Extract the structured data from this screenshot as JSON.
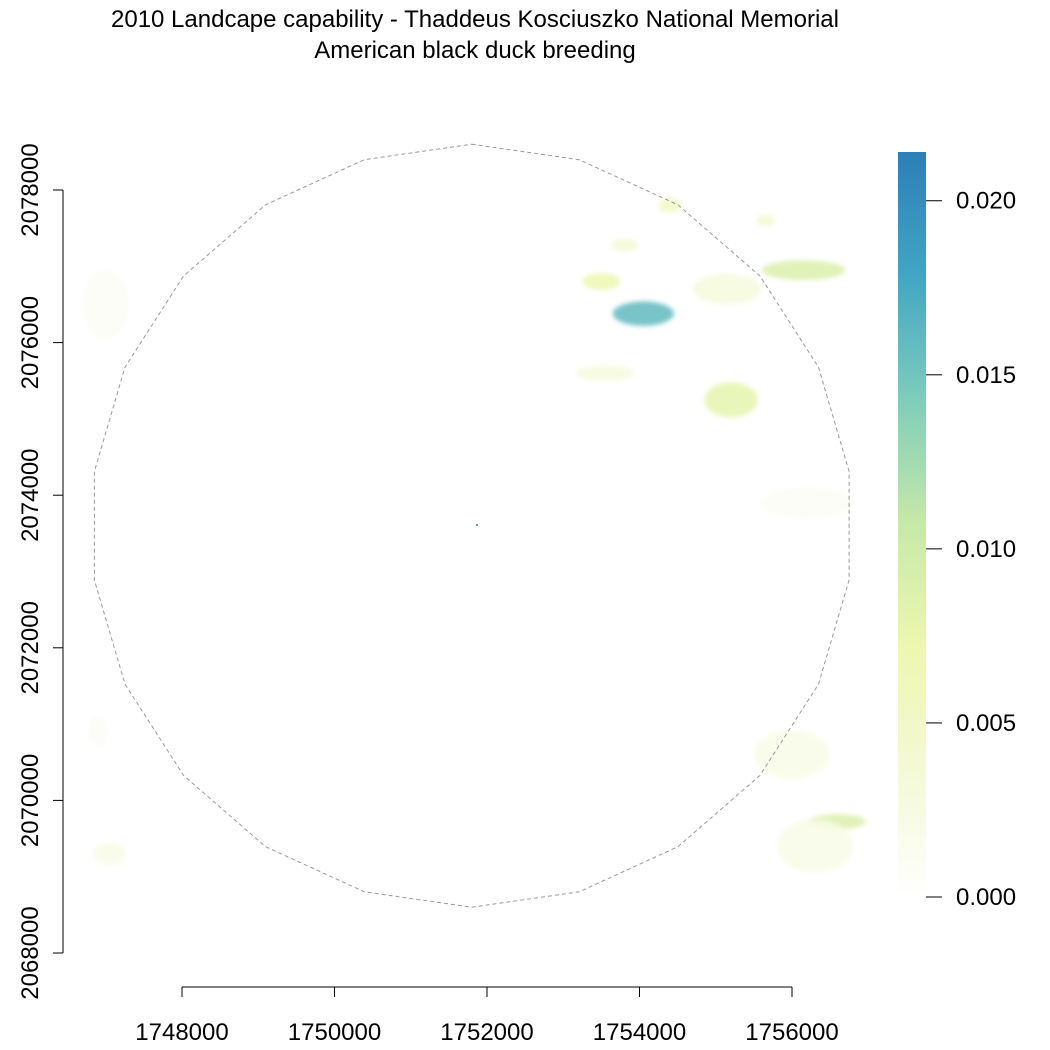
{
  "chart_data": {
    "type": "heatmap",
    "title": "2010 Landcape capability - Thaddeus Kosciuszko National Memorial",
    "subtitle": "American black duck breeding",
    "xlabel": "",
    "ylabel": "",
    "x_ticks": [
      "1748000",
      "1750000",
      "1752000",
      "1754000",
      "1756000"
    ],
    "x_tick_values": [
      1748000,
      1750000,
      1752000,
      1754000,
      1756000
    ],
    "y_ticks": [
      "2068000",
      "2070000",
      "2072000",
      "2074000",
      "2076000",
      "2078000"
    ],
    "y_tick_values": [
      2068000,
      2070000,
      2072000,
      2074000,
      2076000,
      2078000
    ],
    "xlim": [
      1746150,
      1756950
    ],
    "ylim": [
      2068000,
      2078500
    ],
    "legend": {
      "position": "right",
      "ticks": [
        "0.000",
        "0.005",
        "0.010",
        "0.015",
        "0.020"
      ],
      "tick_values": [
        0,
        0.005,
        0.01,
        0.015,
        0.02
      ],
      "range": [
        0,
        0.0214
      ],
      "colors": [
        "#ffffff",
        "#f4f9d6",
        "#eef7b0",
        "#c7e9a8",
        "#7fcdbb",
        "#41a6c4",
        "#2c7fb8"
      ]
    },
    "boundary": {
      "style": "dashed",
      "color": "#999999",
      "center": [
        1751800,
        2073600
      ],
      "radius": 5000
    },
    "patches": [
      {
        "x": 1754050,
        "y": 2076380,
        "rx": 400,
        "ry": 160,
        "value": 0.016
      },
      {
        "x": 1755200,
        "y": 2075250,
        "rx": 350,
        "ry": 230,
        "value": 0.008
      },
      {
        "x": 1756150,
        "y": 2076950,
        "rx": 550,
        "ry": 130,
        "value": 0.009
      },
      {
        "x": 1753500,
        "y": 2076800,
        "rx": 250,
        "ry": 110,
        "value": 0.007
      },
      {
        "x": 1755150,
        "y": 2076700,
        "rx": 450,
        "ry": 200,
        "value": 0.003
      },
      {
        "x": 1754400,
        "y": 2077800,
        "rx": 150,
        "ry": 100,
        "value": 0.005
      },
      {
        "x": 1753800,
        "y": 2077280,
        "rx": 180,
        "ry": 80,
        "value": 0.004
      },
      {
        "x": 1755650,
        "y": 2077600,
        "rx": 120,
        "ry": 80,
        "value": 0.004
      },
      {
        "x": 1753550,
        "y": 2075600,
        "rx": 380,
        "ry": 100,
        "value": 0.003
      },
      {
        "x": 1756600,
        "y": 2069720,
        "rx": 370,
        "ry": 100,
        "value": 0.009
      },
      {
        "x": 1756300,
        "y": 2069400,
        "rx": 500,
        "ry": 350,
        "value": 0.002
      },
      {
        "x": 1756000,
        "y": 2070600,
        "rx": 500,
        "ry": 320,
        "value": 0.002
      },
      {
        "x": 1756200,
        "y": 2073900,
        "rx": 600,
        "ry": 200,
        "value": 0.001
      },
      {
        "x": 1747000,
        "y": 2076500,
        "rx": 300,
        "ry": 450,
        "value": 0.001
      },
      {
        "x": 1747050,
        "y": 2069300,
        "rx": 220,
        "ry": 150,
        "value": 0.002
      },
      {
        "x": 1746900,
        "y": 2070900,
        "rx": 120,
        "ry": 200,
        "value": 0.001
      }
    ]
  }
}
